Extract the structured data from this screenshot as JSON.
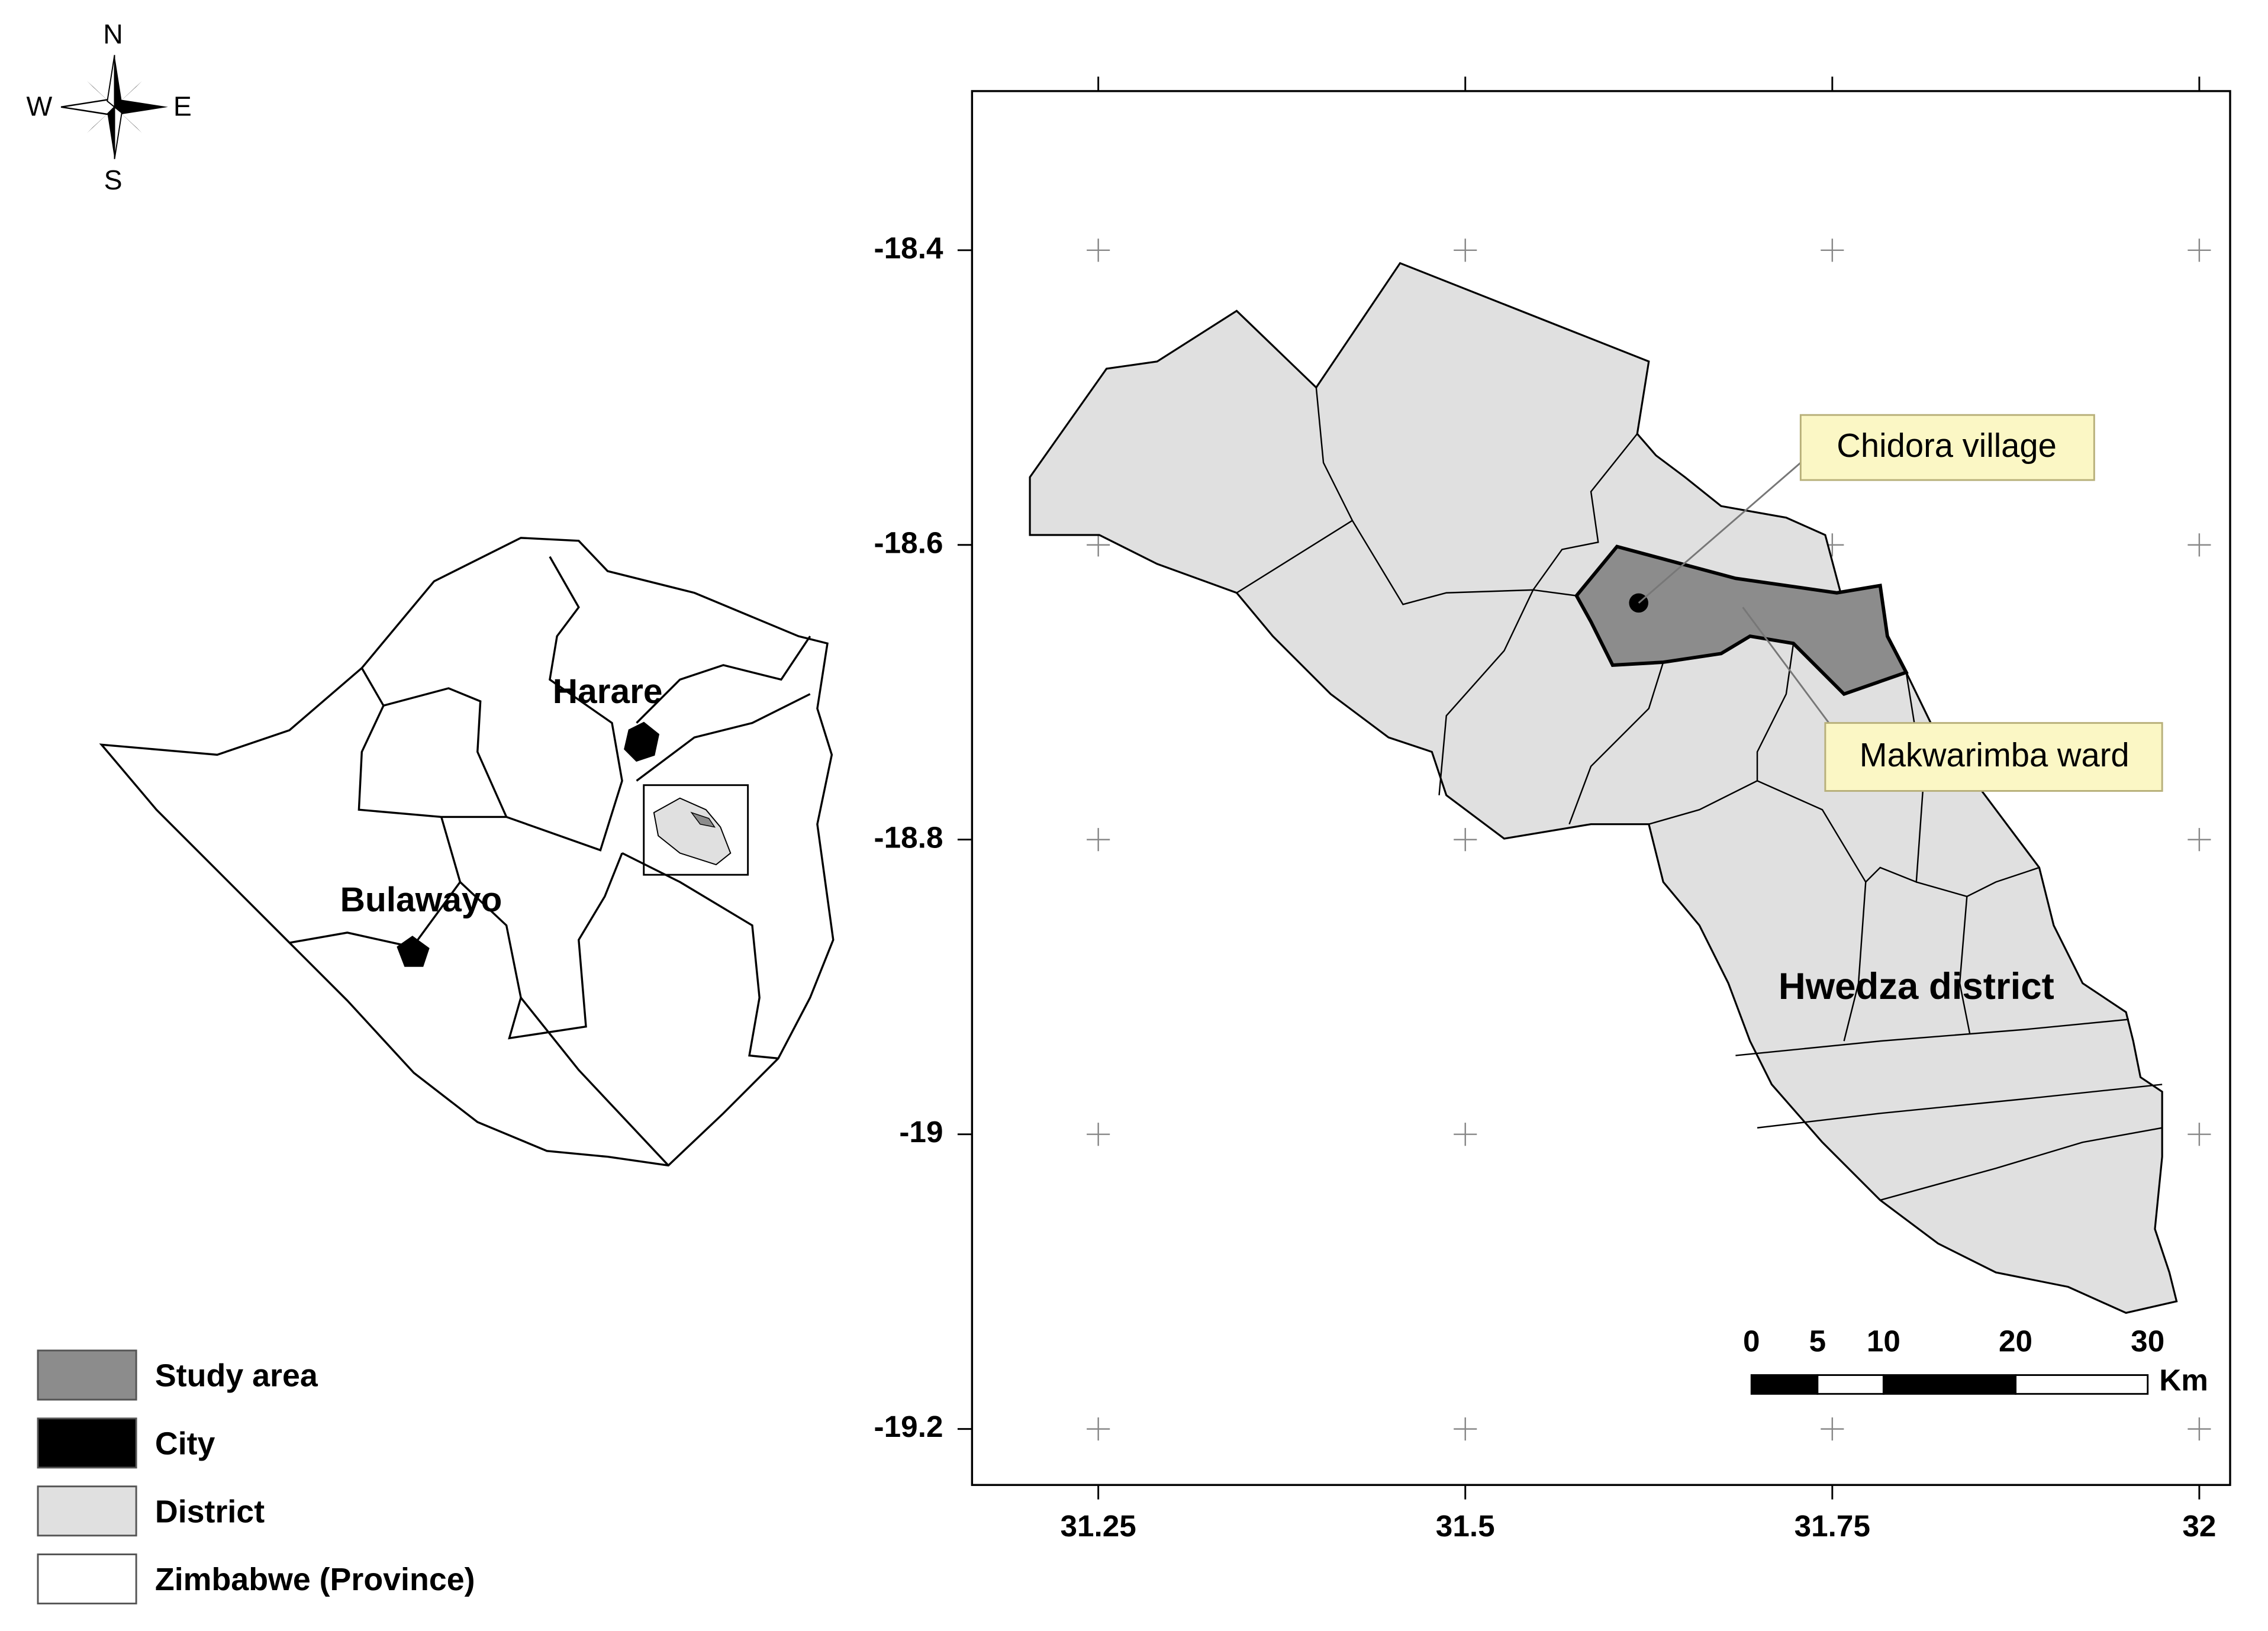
{
  "compass": {
    "n": "N",
    "s": "S",
    "w": "W",
    "e": "E"
  },
  "overview_map": {
    "city_labels": [
      "Harare",
      "Bulawayo"
    ]
  },
  "legend": [
    {
      "label": "Study area",
      "color": "#8c8c8c"
    },
    {
      "label": "City",
      "color": "#000000"
    },
    {
      "label": "District",
      "color": "#e0e0e0"
    },
    {
      "label": "Zimbabwe (Province)",
      "color": "#ffffff"
    }
  ],
  "study_map": {
    "xlim": [
      31.164,
      32.021
    ],
    "ylim": [
      -19.238,
      -18.292
    ],
    "xticks": [
      31.25,
      31.5,
      31.75,
      32
    ],
    "yticks": [
      -18.4,
      -18.6,
      -18.8,
      -19,
      -19.2
    ],
    "district_label": "Hwedza district",
    "callouts": [
      "Chidora village",
      "Makwarimba ward"
    ],
    "scale_bar": {
      "ticks": [
        0,
        5,
        10,
        20,
        30
      ],
      "unit": "Km"
    }
  }
}
